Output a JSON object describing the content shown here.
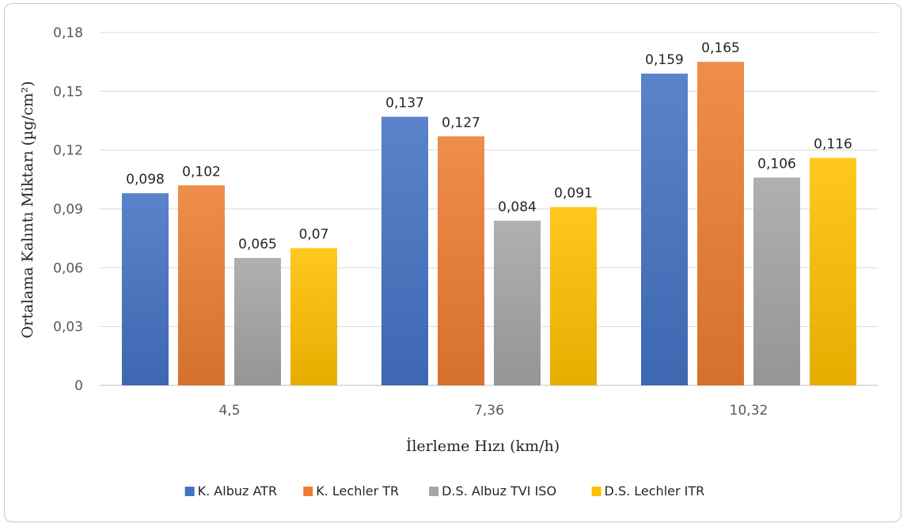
{
  "chart_data": {
    "type": "bar",
    "categories": [
      "4,5",
      "7,36",
      "10,32"
    ],
    "series": [
      {
        "name": "K. Albuz ATR",
        "values": [
          0.098,
          0.137,
          0.159
        ],
        "labels": [
          "0,098",
          "0,137",
          "0,159"
        ],
        "color": "#4472c4"
      },
      {
        "name": "K. Lechler TR",
        "values": [
          0.102,
          0.127,
          0.165
        ],
        "labels": [
          "0,102",
          "0,127",
          "0,165"
        ],
        "color": "#ed7d31"
      },
      {
        "name": "D.S. Albuz TVI ISO",
        "values": [
          0.065,
          0.084,
          0.106
        ],
        "labels": [
          "0,065",
          "0,084",
          "0,106"
        ],
        "color": "#a5a5a5"
      },
      {
        "name": "D.S. Lechler ITR",
        "values": [
          0.07,
          0.091,
          0.116
        ],
        "labels": [
          "0,07",
          "0,091",
          "0,116"
        ],
        "color": "#ffc000"
      }
    ],
    "xlabel": "İlerleme Hızı (km/h)",
    "ylabel": "Ortalama Kalıntı Miktarı (µg/cm²)",
    "ylim": [
      0,
      0.18
    ],
    "yticks": [
      0,
      0.03,
      0.06,
      0.09,
      0.12,
      0.15,
      0.18
    ],
    "ytick_labels": [
      "0",
      "0,03",
      "0,06",
      "0,09",
      "0,12",
      "0,15",
      "0,18"
    ],
    "grid": true,
    "legend": "bottom"
  }
}
